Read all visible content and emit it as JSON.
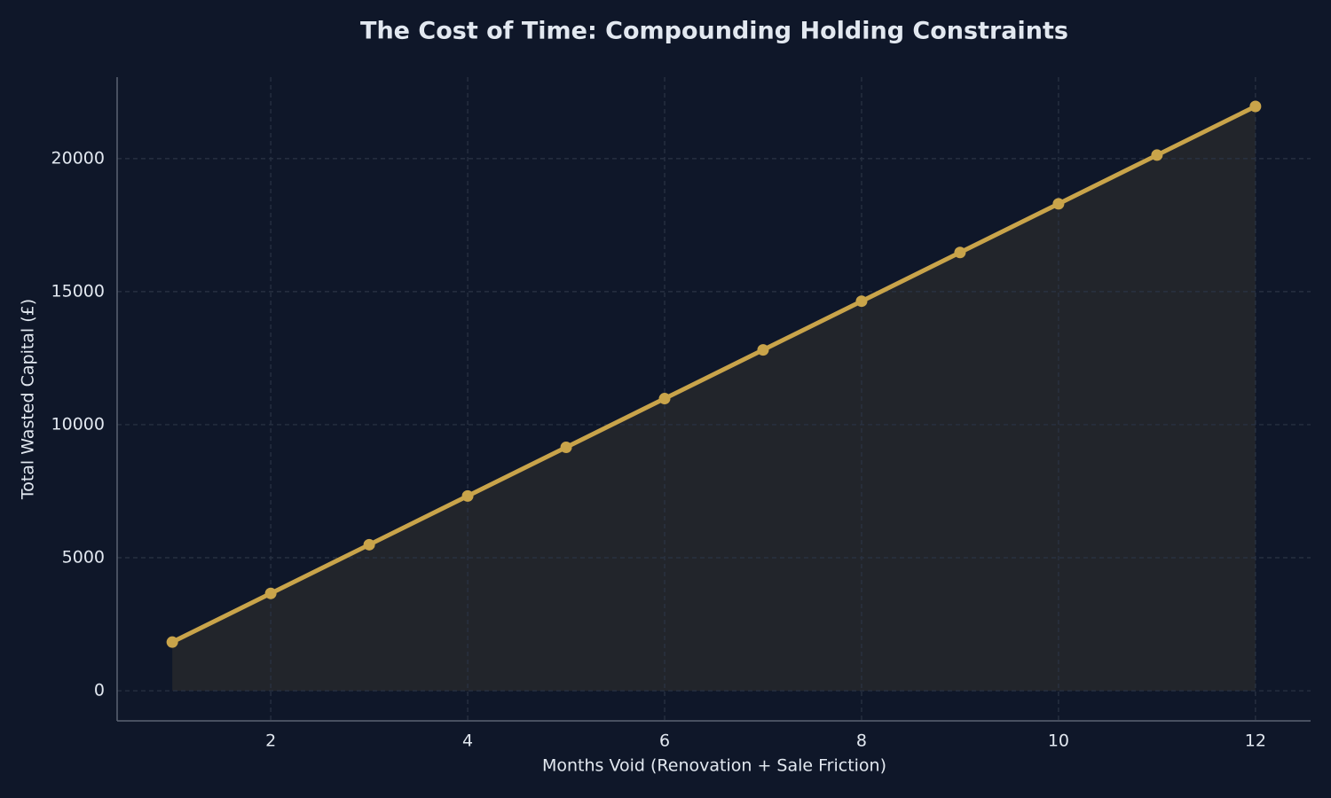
{
  "chart_data": {
    "type": "line",
    "title": "The Cost of Time: Compounding Holding Constraints",
    "xlabel": "Months Void (Renovation + Sale Friction)",
    "ylabel": "Total Wasted Capital (£)",
    "x": [
      1,
      2,
      3,
      4,
      5,
      6,
      7,
      8,
      9,
      10,
      11,
      12
    ],
    "series": [
      {
        "name": "Total Wasted Capital",
        "color": "#c9a44a",
        "values": [
          1830,
          3660,
          5490,
          7320,
          9150,
          10980,
          12810,
          14640,
          16470,
          18300,
          20130,
          21960
        ]
      }
    ],
    "area_color": "#22252b",
    "xlim": [
      0.44,
      12.56
    ],
    "xticks": [
      2,
      4,
      6,
      8,
      10,
      12
    ],
    "ylim": [
      -1130,
      23060
    ],
    "yticks": [
      0,
      5000,
      10000,
      15000,
      20000
    ],
    "grid": true
  }
}
